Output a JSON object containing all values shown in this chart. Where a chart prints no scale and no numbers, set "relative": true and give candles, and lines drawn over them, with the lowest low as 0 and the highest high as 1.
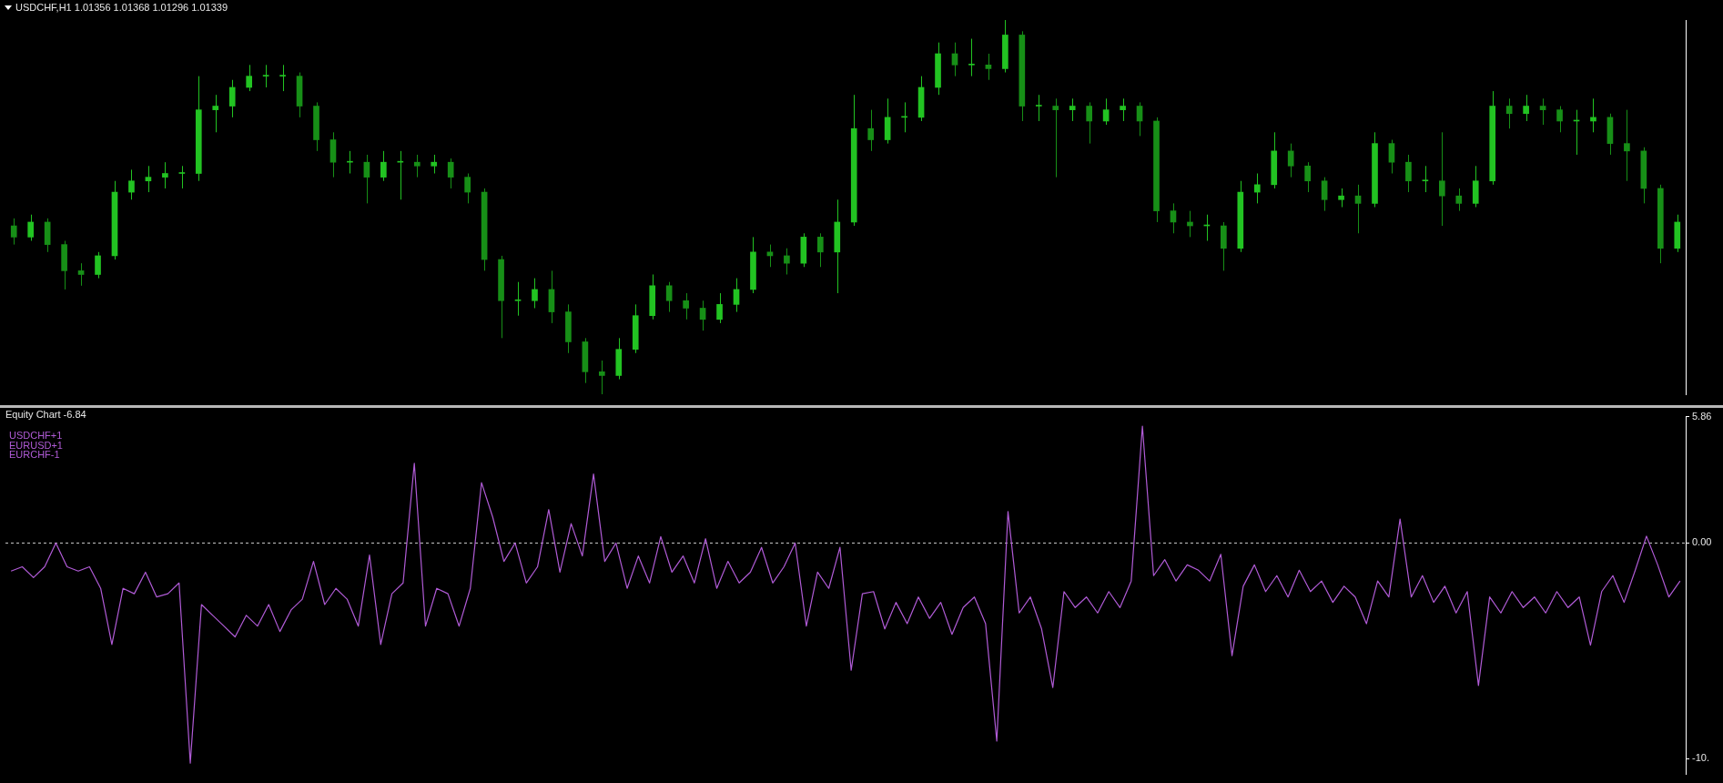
{
  "chart_data": [
    {
      "type": "candlestick",
      "title": "USDCHF,H1 1.01356 1.01368 1.01296 1.01339",
      "relative": true,
      "colors": [
        "#178f17",
        "#22c322",
        "#178f17",
        "#178f17",
        "#178f17",
        "#22c322",
        "#22c322",
        "#22c322",
        "#22c322",
        "#22c322",
        "#22c322",
        "#22c322",
        "#22c322",
        "#22c322",
        "#22c322",
        "#22c322",
        "#22c322",
        "#178f17",
        "#178f17",
        "#178f17",
        "#22c322",
        "#178f17",
        "#22c322",
        "#22c322",
        "#178f17",
        "#22c322",
        "#178f17",
        "#178f17",
        "#178f17",
        "#178f17",
        "#22c322",
        "#22c322",
        "#178f17",
        "#178f17",
        "#178f17",
        "#178f17",
        "#22c322",
        "#22c322",
        "#22c322",
        "#178f17",
        "#178f17",
        "#178f17",
        "#22c322",
        "#22c322",
        "#22c322",
        "#178f17",
        "#178f17",
        "#22c322",
        "#178f17",
        "#22c322",
        "#22c322",
        "#178f17",
        "#22c322",
        "#22c322",
        "#22c322",
        "#22c322",
        "#178f17",
        "#22c322",
        "#178f17",
        "#22c322",
        "#178f17",
        "#22c322",
        "#178f17",
        "#22c322",
        "#178f17",
        "#22c322",
        "#22c322",
        "#178f17",
        "#178f17",
        "#178f17",
        "#178f17",
        "#22c322",
        "#178f17",
        "#22c322",
        "#22c322",
        "#22c322",
        "#178f17",
        "#178f17",
        "#178f17",
        "#22c322",
        "#178f17",
        "#22c322",
        "#178f17",
        "#178f17",
        "#22c322",
        "#178f17",
        "#178f17",
        "#22c322",
        "#22c322",
        "#178f17",
        "#22c322",
        "#178f17",
        "#178f17",
        "#22c322",
        "#22c322",
        "#178f17",
        "#178f17",
        "#178f17",
        "#178f17",
        "#22c322"
      ],
      "categories": [
        null,
        null,
        null,
        null,
        null,
        null,
        null,
        null,
        null,
        null,
        null,
        null,
        null,
        null,
        null,
        null,
        null,
        null,
        null,
        null,
        null,
        null,
        null,
        null,
        null,
        null,
        null,
        null,
        null,
        null,
        null,
        null,
        null,
        null,
        null,
        null,
        null,
        null,
        null,
        null,
        null,
        null,
        null,
        null,
        null,
        null,
        null,
        null,
        null,
        null,
        null,
        null,
        null,
        null,
        null,
        null,
        null,
        null,
        null,
        null,
        null,
        null,
        null,
        null,
        null,
        null,
        null,
        null,
        null,
        null,
        null,
        null,
        null,
        null,
        null,
        null,
        null,
        null,
        null,
        null,
        null,
        null,
        null,
        null,
        null,
        null,
        null,
        null,
        null,
        null,
        null,
        null,
        null,
        null,
        null,
        null,
        null,
        null,
        null,
        null
      ],
      "ohlc": [
        [
          0.45,
          0.47,
          0.4,
          0.42
        ],
        [
          0.42,
          0.48,
          0.41,
          0.46
        ],
        [
          0.46,
          0.47,
          0.38,
          0.4
        ],
        [
          0.4,
          0.41,
          0.28,
          0.33
        ],
        [
          0.33,
          0.35,
          0.29,
          0.32
        ],
        [
          0.32,
          0.38,
          0.31,
          0.37
        ],
        [
          0.37,
          0.57,
          0.36,
          0.54
        ],
        [
          0.54,
          0.6,
          0.52,
          0.57
        ],
        [
          0.57,
          0.61,
          0.54,
          0.58
        ],
        [
          0.58,
          0.62,
          0.55,
          0.59
        ],
        [
          0.59,
          0.61,
          0.55,
          0.59
        ],
        [
          0.59,
          0.85,
          0.57,
          0.76
        ],
        [
          0.76,
          0.8,
          0.7,
          0.77
        ],
        [
          0.77,
          0.84,
          0.74,
          0.82
        ],
        [
          0.82,
          0.88,
          0.81,
          0.85
        ],
        [
          0.85,
          0.88,
          0.82,
          0.85
        ],
        [
          0.85,
          0.88,
          0.81,
          0.85
        ],
        [
          0.85,
          0.86,
          0.74,
          0.77
        ],
        [
          0.77,
          0.78,
          0.65,
          0.68
        ],
        [
          0.68,
          0.7,
          0.58,
          0.62
        ],
        [
          0.62,
          0.65,
          0.59,
          0.62
        ],
        [
          0.62,
          0.64,
          0.51,
          0.58
        ],
        [
          0.58,
          0.65,
          0.57,
          0.62
        ],
        [
          0.62,
          0.65,
          0.52,
          0.62
        ],
        [
          0.62,
          0.64,
          0.58,
          0.61
        ],
        [
          0.61,
          0.64,
          0.59,
          0.62
        ],
        [
          0.62,
          0.63,
          0.55,
          0.58
        ],
        [
          0.58,
          0.59,
          0.51,
          0.54
        ],
        [
          0.54,
          0.55,
          0.33,
          0.36
        ],
        [
          0.36,
          0.37,
          0.15,
          0.25
        ],
        [
          0.25,
          0.3,
          0.21,
          0.25
        ],
        [
          0.25,
          0.31,
          0.23,
          0.28
        ],
        [
          0.28,
          0.33,
          0.19,
          0.22
        ],
        [
          0.22,
          0.24,
          0.11,
          0.14
        ],
        [
          0.14,
          0.15,
          0.03,
          0.06
        ],
        [
          0.06,
          0.09,
          0,
          0.05
        ],
        [
          0.05,
          0.15,
          0.04,
          0.12
        ],
        [
          0.12,
          0.24,
          0.11,
          0.21
        ],
        [
          0.21,
          0.32,
          0.2,
          0.29
        ],
        [
          0.29,
          0.3,
          0.22,
          0.25
        ],
        [
          0.25,
          0.27,
          0.2,
          0.23
        ],
        [
          0.23,
          0.25,
          0.17,
          0.2
        ],
        [
          0.2,
          0.27,
          0.19,
          0.24
        ],
        [
          0.24,
          0.31,
          0.22,
          0.28
        ],
        [
          0.28,
          0.42,
          0.27,
          0.38
        ],
        [
          0.38,
          0.4,
          0.34,
          0.37
        ],
        [
          0.37,
          0.39,
          0.32,
          0.35
        ],
        [
          0.35,
          0.43,
          0.34,
          0.42
        ],
        [
          0.42,
          0.43,
          0.34,
          0.38
        ],
        [
          0.38,
          0.52,
          0.27,
          0.46
        ],
        [
          0.46,
          0.8,
          0.45,
          0.71
        ],
        [
          0.71,
          0.76,
          0.65,
          0.68
        ],
        [
          0.68,
          0.79,
          0.67,
          0.74
        ],
        [
          0.74,
          0.78,
          0.7,
          0.74
        ],
        [
          0.74,
          0.85,
          0.73,
          0.82
        ],
        [
          0.82,
          0.94,
          0.8,
          0.91
        ],
        [
          0.91,
          0.94,
          0.85,
          0.88
        ],
        [
          0.88,
          0.95,
          0.85,
          0.88
        ],
        [
          0.88,
          0.91,
          0.84,
          0.87
        ],
        [
          0.87,
          1,
          0.86,
          0.96
        ],
        [
          0.96,
          0.97,
          0.73,
          0.77
        ],
        [
          0.77,
          0.8,
          0.73,
          0.77
        ],
        [
          0.77,
          0.79,
          0.58,
          0.76
        ],
        [
          0.76,
          0.79,
          0.73,
          0.77
        ],
        [
          0.77,
          0.78,
          0.67,
          0.73
        ],
        [
          0.73,
          0.79,
          0.72,
          0.76
        ],
        [
          0.76,
          0.79,
          0.73,
          0.77
        ],
        [
          0.77,
          0.78,
          0.69,
          0.73
        ],
        [
          0.73,
          0.74,
          0.46,
          0.49
        ],
        [
          0.49,
          0.51,
          0.43,
          0.46
        ],
        [
          0.46,
          0.49,
          0.42,
          0.45
        ],
        [
          0.45,
          0.48,
          0.41,
          0.45
        ],
        [
          0.45,
          0.46,
          0.33,
          0.39
        ],
        [
          0.39,
          0.57,
          0.38,
          0.54
        ],
        [
          0.54,
          0.59,
          0.51,
          0.56
        ],
        [
          0.56,
          0.7,
          0.55,
          0.65
        ],
        [
          0.65,
          0.67,
          0.58,
          0.61
        ],
        [
          0.61,
          0.62,
          0.54,
          0.57
        ],
        [
          0.57,
          0.58,
          0.49,
          0.52
        ],
        [
          0.52,
          0.55,
          0.5,
          0.53
        ],
        [
          0.53,
          0.56,
          0.43,
          0.51
        ],
        [
          0.51,
          0.7,
          0.5,
          0.67
        ],
        [
          0.67,
          0.68,
          0.59,
          0.62
        ],
        [
          0.62,
          0.64,
          0.54,
          0.57
        ],
        [
          0.57,
          0.61,
          0.54,
          0.57
        ],
        [
          0.57,
          0.7,
          0.45,
          0.53
        ],
        [
          0.53,
          0.55,
          0.49,
          0.51
        ],
        [
          0.51,
          0.61,
          0.5,
          0.57
        ],
        [
          0.57,
          0.81,
          0.56,
          0.77
        ],
        [
          0.77,
          0.79,
          0.71,
          0.75
        ],
        [
          0.75,
          0.8,
          0.73,
          0.77
        ],
        [
          0.77,
          0.79,
          0.72,
          0.76
        ],
        [
          0.76,
          0.77,
          0.7,
          0.73
        ],
        [
          0.73,
          0.76,
          0.64,
          0.73
        ],
        [
          0.73,
          0.79,
          0.7,
          0.74
        ],
        [
          0.74,
          0.75,
          0.64,
          0.67
        ],
        [
          0.67,
          0.76,
          0.57,
          0.65
        ],
        [
          0.65,
          0.66,
          0.51,
          0.55
        ],
        [
          0.55,
          0.56,
          0.35,
          0.39
        ],
        [
          0.39,
          0.48,
          0.38,
          0.46
        ]
      ]
    },
    {
      "type": "line",
      "title": "Equity Chart -6.84",
      "annotations": [
        "USDCHF+1",
        "EURUSD+1",
        "EURCHF-1"
      ],
      "color": "#b05bd6",
      "tick_labels": "y",
      "categories": [
        null,
        null,
        null,
        null,
        null,
        null,
        null,
        null,
        null,
        null,
        null,
        null,
        null,
        null,
        null,
        null,
        null,
        null,
        null,
        null,
        null,
        null,
        null,
        null,
        null,
        null,
        null,
        null,
        null,
        null,
        null,
        null,
        null,
        null,
        null,
        null,
        null,
        null,
        null,
        null,
        null,
        null,
        null,
        null,
        null,
        null,
        null,
        null,
        null,
        null,
        null,
        null,
        null,
        null,
        null,
        null,
        null,
        null,
        null,
        null,
        null,
        null,
        null,
        null,
        null,
        null,
        null,
        null,
        null,
        null,
        null,
        null,
        null,
        null,
        null,
        null,
        null,
        null,
        null,
        null,
        null,
        null,
        null,
        null,
        null,
        null,
        null,
        null,
        null,
        null,
        null,
        null,
        null,
        null,
        null,
        null,
        null,
        null,
        null,
        null,
        null,
        null,
        null,
        null,
        null,
        null,
        null,
        null,
        null,
        null,
        null,
        null,
        null,
        null,
        null,
        null,
        null,
        null,
        null,
        null,
        null,
        null,
        null,
        null,
        null,
        null,
        null,
        null,
        null,
        null,
        null,
        null,
        null,
        null,
        null,
        null,
        null,
        null,
        null,
        null,
        null,
        null,
        null,
        null,
        null,
        null,
        null,
        null,
        null,
        null
      ],
      "values": [
        -1.3,
        -1.1,
        -1.6,
        -1.1,
        0,
        -1.1,
        -1.3,
        -1.1,
        -2.1,
        -4.7,
        -2.1,
        -2.35,
        -1.35,
        -2.5,
        -2.35,
        -1.85,
        -10.2,
        -2.85,
        -3.35,
        -3.85,
        -4.35,
        -3.35,
        -3.85,
        -2.85,
        -4.1,
        -3.1,
        -2.6,
        -0.85,
        -2.85,
        -2.1,
        -2.6,
        -3.85,
        -0.55,
        -4.7,
        -2.35,
        -1.85,
        3.7,
        -3.85,
        -2.1,
        -2.35,
        -3.85,
        -2.1,
        2.8,
        1.2,
        -0.85,
        0,
        -1.85,
        -1.1,
        1.55,
        -1.35,
        0.9,
        -0.6,
        3.2,
        -0.85,
        0,
        -2.1,
        -0.6,
        -1.85,
        0.3,
        -1.35,
        -0.6,
        -1.85,
        0.2,
        -2.1,
        -0.85,
        -1.85,
        -1.35,
        -0.2,
        -1.85,
        -1.1,
        0,
        -3.85,
        -1.35,
        -2.1,
        -0.2,
        -5.9,
        -2.35,
        -2.25,
        -3.98,
        -2.75,
        -3.74,
        -2.5,
        -3.49,
        -2.75,
        -4.23,
        -2.99,
        -2.5,
        -3.74,
        -9.18,
        1.46,
        -3.24,
        -2.5,
        -3.98,
        -6.7,
        -2.25,
        -2.99,
        -2.5,
        -3.24,
        -2.25,
        -2.99,
        -1.76,
        5.42,
        -1.51,
        -0.77,
        -1.76,
        -1.01,
        -1.26,
        -1.76,
        -0.52,
        -5.22,
        -2.0,
        -1.01,
        -2.25,
        -1.51,
        -2.5,
        -1.26,
        -2.25,
        -1.76,
        -2.75,
        -2.0,
        -2.5,
        -3.74,
        -1.76,
        -2.5,
        1.11,
        -2.5,
        -1.51,
        -2.75,
        -2.0,
        -3.24,
        -2.25,
        -6.6,
        -2.5,
        -3.24,
        -2.25,
        -2.99,
        -2.5,
        -3.24,
        -2.25,
        -2.99,
        -2.5,
        -4.73,
        -2.25,
        -1.51,
        -2.75,
        -1.26,
        0.32,
        -1.01,
        -2.5,
        -1.76
      ],
      "ylim": [
        -10.7,
        5.86
      ],
      "yticks": [
        5.86,
        {
          "value": 0,
          "label": "0.00"
        },
        {
          "value": -10,
          "label": "-10."
        }
      ],
      "ref_lines": [
        {
          "axis": "y",
          "value": 0,
          "color": "#c8c8c8",
          "line_style": "dashed"
        }
      ]
    }
  ]
}
